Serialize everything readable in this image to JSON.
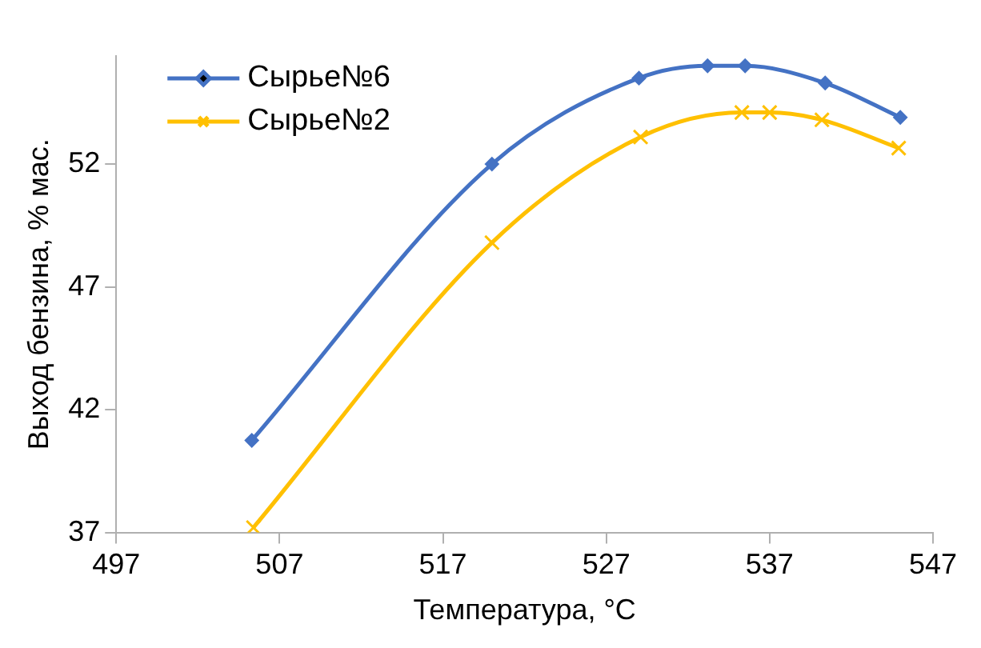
{
  "chart_data": {
    "type": "line",
    "xlabel": "Температура, °C",
    "ylabel": "Выход бензина, % мас.",
    "xlim": [
      497,
      547
    ],
    "xticks": [
      497,
      507,
      517,
      527,
      537,
      547
    ],
    "ylim": [
      37,
      56.4
    ],
    "yticks": [
      37,
      42,
      47,
      52
    ],
    "grid": false,
    "legend": "top left",
    "series": [
      {
        "name": "Сырье№6",
        "color": "#4472c4",
        "marker": "diamond",
        "x": [
          505.3,
          520,
          529,
          533.2,
          535.5,
          540.4,
          545
        ],
        "values": [
          40.75,
          52,
          55.5,
          56,
          56,
          55.3,
          53.9
        ]
      },
      {
        "name": "Сырье№2",
        "color": "#ffc000",
        "marker": "cross",
        "x": [
          505.4,
          520,
          529.1,
          535.3,
          537,
          540.2,
          544.9
        ],
        "values": [
          37.2,
          48.8,
          53.1,
          54.1,
          54.1,
          53.8,
          52.65
        ]
      }
    ]
  }
}
